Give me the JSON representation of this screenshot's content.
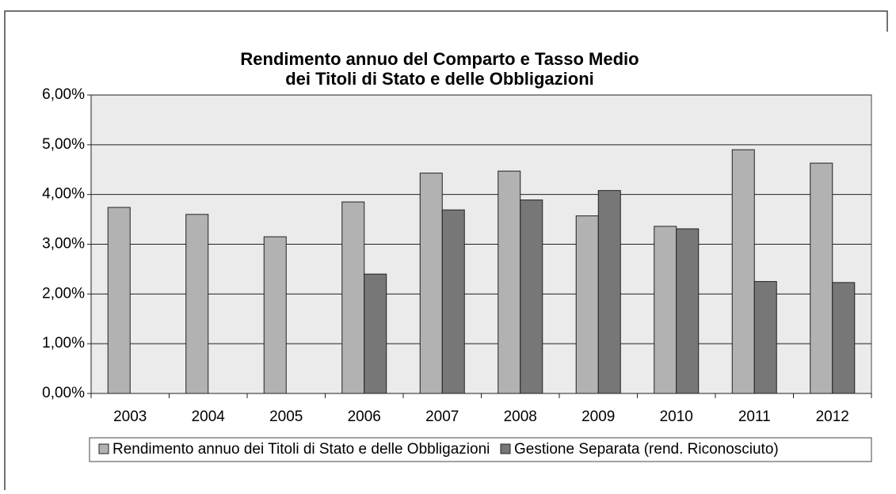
{
  "chart_data": {
    "type": "bar",
    "title": [
      "Rendimento annuo del Comparto e Tasso Medio",
      "dei Titoli di Stato e delle Obbligazioni"
    ],
    "categories": [
      "2003",
      "2004",
      "2005",
      "2006",
      "2007",
      "2008",
      "2009",
      "2010",
      "2011",
      "2012"
    ],
    "series": [
      {
        "name": "Rendimento annuo dei Titoli di Stato e delle Obbligazioni",
        "color": "#b2b2b2",
        "values": [
          3.74,
          3.6,
          3.15,
          3.85,
          4.43,
          4.47,
          3.57,
          3.36,
          4.9,
          4.63
        ]
      },
      {
        "name": "Gestione Separata (rend. Riconosciuto)",
        "color": "#777777",
        "values": [
          null,
          null,
          null,
          2.4,
          3.69,
          3.89,
          4.08,
          3.31,
          2.25,
          2.23
        ]
      }
    ],
    "ylim": [
      0,
      6
    ],
    "yticks": [
      {
        "value": 0,
        "label": "0,00%"
      },
      {
        "value": 1,
        "label": "1,00%"
      },
      {
        "value": 2,
        "label": "2,00%"
      },
      {
        "value": 3,
        "label": "3,00%"
      },
      {
        "value": 4,
        "label": "4,00%"
      },
      {
        "value": 5,
        "label": "5,00%"
      },
      {
        "value": 6,
        "label": "6,00%"
      }
    ],
    "grid": true,
    "legend": "bottom"
  }
}
